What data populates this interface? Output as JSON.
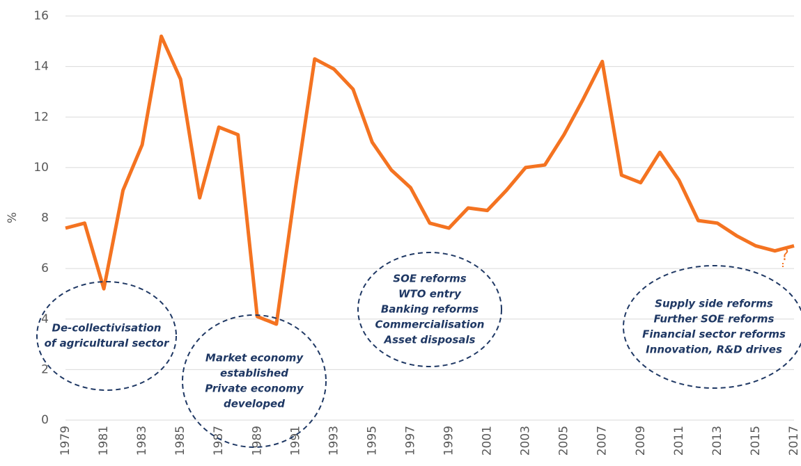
{
  "chart_data": {
    "type": "line",
    "y_label": "%",
    "x": [
      1979,
      1980,
      1981,
      1982,
      1983,
      1984,
      1985,
      1986,
      1987,
      1988,
      1989,
      1990,
      1991,
      1992,
      1993,
      1994,
      1995,
      1996,
      1997,
      1998,
      1999,
      2000,
      2001,
      2002,
      2003,
      2004,
      2005,
      2006,
      2007,
      2008,
      2009,
      2010,
      2011,
      2012,
      2013,
      2014,
      2015,
      2016,
      2017
    ],
    "values": [
      7.6,
      7.8,
      5.2,
      9.1,
      10.9,
      15.2,
      13.5,
      8.8,
      11.6,
      11.3,
      4.1,
      3.8,
      9.2,
      14.3,
      13.9,
      13.1,
      11.0,
      9.9,
      9.2,
      7.8,
      7.6,
      8.4,
      8.3,
      9.1,
      10.0,
      10.1,
      11.3,
      12.7,
      14.2,
      9.7,
      9.4,
      10.6,
      9.5,
      7.9,
      7.8,
      7.3,
      6.9,
      6.7,
      6.9
    ],
    "color": "#f47321",
    "xlim": [
      1979,
      2017
    ],
    "xticks": [
      1979,
      1981,
      1983,
      1985,
      1987,
      1989,
      1991,
      1993,
      1995,
      1997,
      1999,
      2001,
      2003,
      2005,
      2007,
      2009,
      2011,
      2013,
      2015,
      2017
    ],
    "ylim": [
      0,
      16
    ],
    "yticks": [
      0,
      2,
      4,
      6,
      8,
      10,
      12,
      14,
      16
    ],
    "grid": true,
    "annotations": [
      {
        "lines": [
          "De-collectivisation",
          "of agricultural sector"
        ]
      },
      {
        "lines": [
          "Market economy",
          "established",
          "Private economy",
          "developed"
        ]
      },
      {
        "lines": [
          "SOE reforms",
          "WTO entry",
          "Banking reforms",
          "Commercialisation",
          "Asset disposals"
        ]
      },
      {
        "lines": [
          "Supply side reforms",
          "Further SOE reforms",
          "Financial sector reforms",
          "Innovation, R&D drives"
        ]
      }
    ],
    "end_note": "?"
  }
}
